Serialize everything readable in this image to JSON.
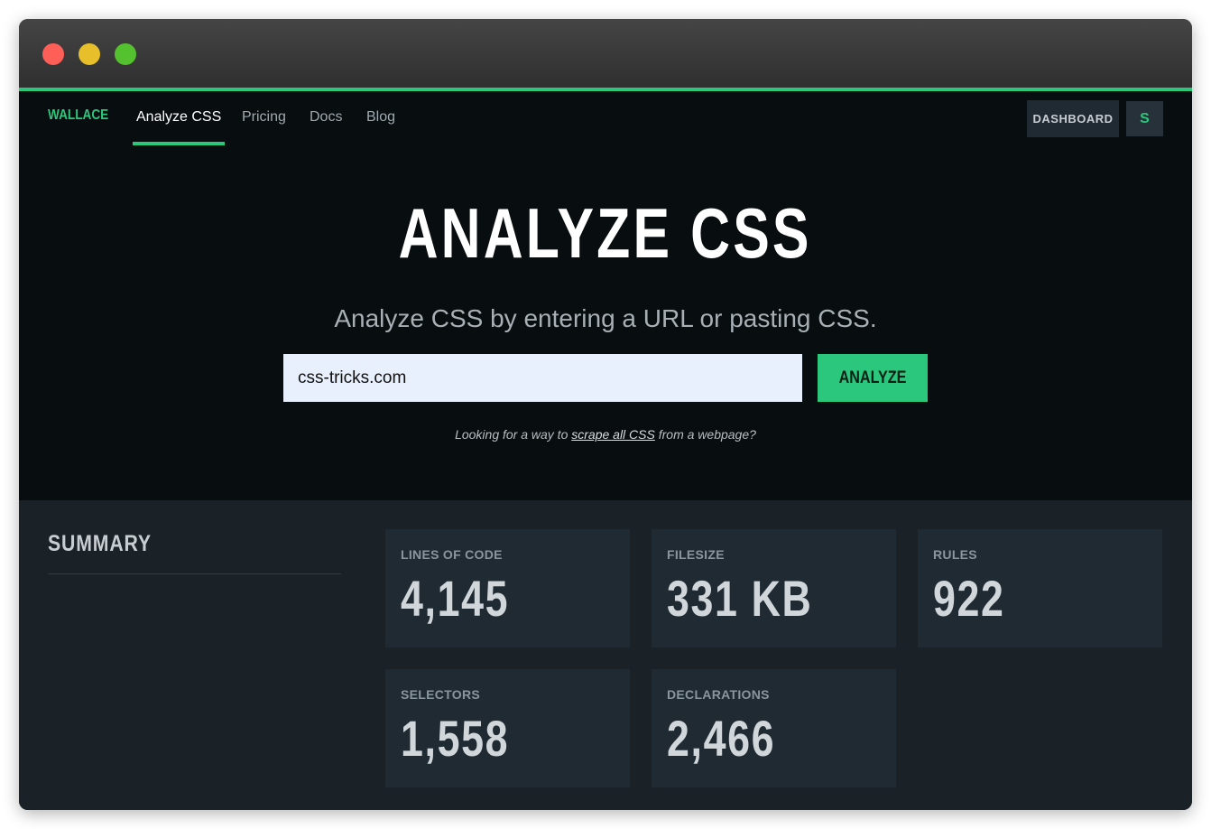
{
  "window": {
    "controls": {
      "close_color": "#ff5f57",
      "minimize_color": "#e6bf2a",
      "maximize_color": "#53c22e"
    }
  },
  "nav": {
    "logo": "WALLACE",
    "links": [
      "Analyze CSS",
      "Pricing",
      "Docs",
      "Blog"
    ],
    "active": "Analyze CSS",
    "dashboard": "DASHBOARD",
    "avatar": "S"
  },
  "hero": {
    "title": "ANALYZE CSS",
    "subtitle": "Analyze CSS by entering a URL or pasting CSS.",
    "input_value": "css-tricks.com",
    "button": "ANALYZE",
    "hint_before": "Looking for a way to ",
    "hint_link": "scrape all CSS",
    "hint_after": " from a webpage?"
  },
  "summary": {
    "title": "SUMMARY",
    "cards": [
      {
        "label": "LINES OF CODE",
        "value": "4,145"
      },
      {
        "label": "FILESIZE",
        "value": "331 KB"
      },
      {
        "label": "RULES",
        "value": "922"
      },
      {
        "label": "SELECTORS",
        "value": "1,558"
      },
      {
        "label": "DECLARATIONS",
        "value": "2,466"
      }
    ]
  },
  "colors": {
    "accent": "#2bc77c",
    "background": "#080d10",
    "panel": "#1f2a32"
  }
}
